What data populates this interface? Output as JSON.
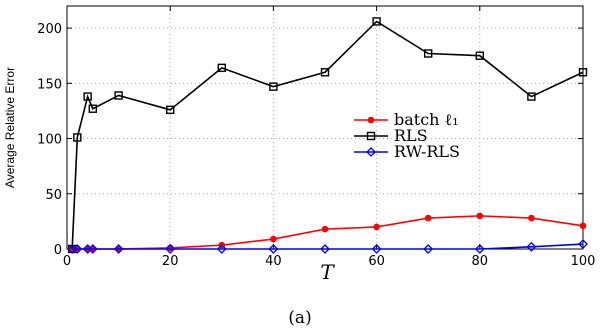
{
  "chart_data": {
    "type": "line",
    "ylabel": "Average Relative Error",
    "xlabel": "T",
    "caption": "(a)",
    "xlim": [
      0,
      100
    ],
    "ylim": [
      0,
      220
    ],
    "x_ticks": [
      "0",
      "20",
      "40",
      "60",
      "80",
      "100"
    ],
    "y_ticks": [
      "0",
      "50",
      "100",
      "150",
      "200"
    ],
    "grid": true,
    "legend_position": "center-right",
    "series": [
      {
        "name": "batch ℓ₁",
        "color": "#ff0000",
        "marker": "circle",
        "x": [
          1,
          2,
          4,
          5,
          10,
          20,
          30,
          40,
          50,
          60,
          70,
          80,
          90,
          100
        ],
        "y": [
          0,
          0,
          0,
          0,
          0,
          1,
          3.5,
          9,
          18,
          20,
          28,
          30,
          28,
          21
        ]
      },
      {
        "name": "RLS",
        "color": "#000000",
        "marker": "square",
        "x": [
          1,
          2,
          4,
          5,
          10,
          20,
          30,
          40,
          50,
          60,
          70,
          80,
          90,
          100
        ],
        "y": [
          0,
          101,
          138,
          127,
          139,
          126,
          164,
          147,
          160,
          206,
          177,
          175,
          138,
          160
        ]
      },
      {
        "name": "RW-RLS",
        "color": "#0000ff",
        "marker": "diamond",
        "x": [
          1,
          2,
          4,
          5,
          10,
          20,
          30,
          40,
          50,
          60,
          70,
          80,
          90,
          100
        ],
        "y": [
          0,
          0,
          0,
          0,
          0,
          0,
          0,
          0,
          0,
          0,
          0,
          0,
          2,
          4.5
        ]
      }
    ]
  }
}
